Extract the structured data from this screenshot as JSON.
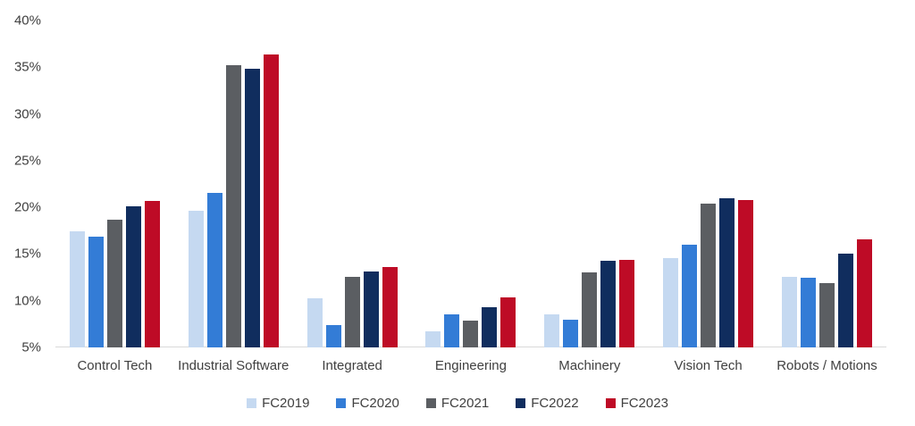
{
  "chart_data": {
    "type": "bar",
    "title": "",
    "xlabel": "",
    "ylabel": "",
    "grid": false,
    "legend_position": "bottom",
    "categories": [
      "Control Tech",
      "Industrial Software",
      "Integrated",
      "Engineering",
      "Machinery",
      "Vision Tech",
      "Robots / Motions"
    ],
    "series": [
      {
        "name": "FC2019",
        "color": "#C5D9F1",
        "values": [
          17.4,
          19.6,
          10.3,
          6.7,
          8.5,
          14.6,
          12.6
        ]
      },
      {
        "name": "FC2020",
        "color": "#337CD6",
        "values": [
          16.9,
          21.5,
          7.4,
          8.5,
          8.0,
          16.0,
          12.5
        ]
      },
      {
        "name": "FC2021",
        "color": "#5B5E62",
        "values": [
          18.7,
          35.2,
          12.6,
          7.9,
          13.0,
          20.4,
          11.9
        ]
      },
      {
        "name": "FC2022",
        "color": "#102D5E",
        "values": [
          20.1,
          34.8,
          13.1,
          9.3,
          14.3,
          21.0,
          15.0
        ]
      },
      {
        "name": "FC2023",
        "color": "#BE0B26",
        "values": [
          20.7,
          36.4,
          13.6,
          10.4,
          14.4,
          20.8,
          16.6
        ]
      }
    ],
    "y_axis": {
      "min": 5,
      "max": 40,
      "step": 5,
      "tick_labels": [
        "40%",
        "35%",
        "30%",
        "25%",
        "20%",
        "15%",
        "10%",
        "5%"
      ]
    },
    "colors": {
      "axis_line": "#d9d9d9",
      "text": "#404040",
      "background": "#ffffff"
    }
  }
}
